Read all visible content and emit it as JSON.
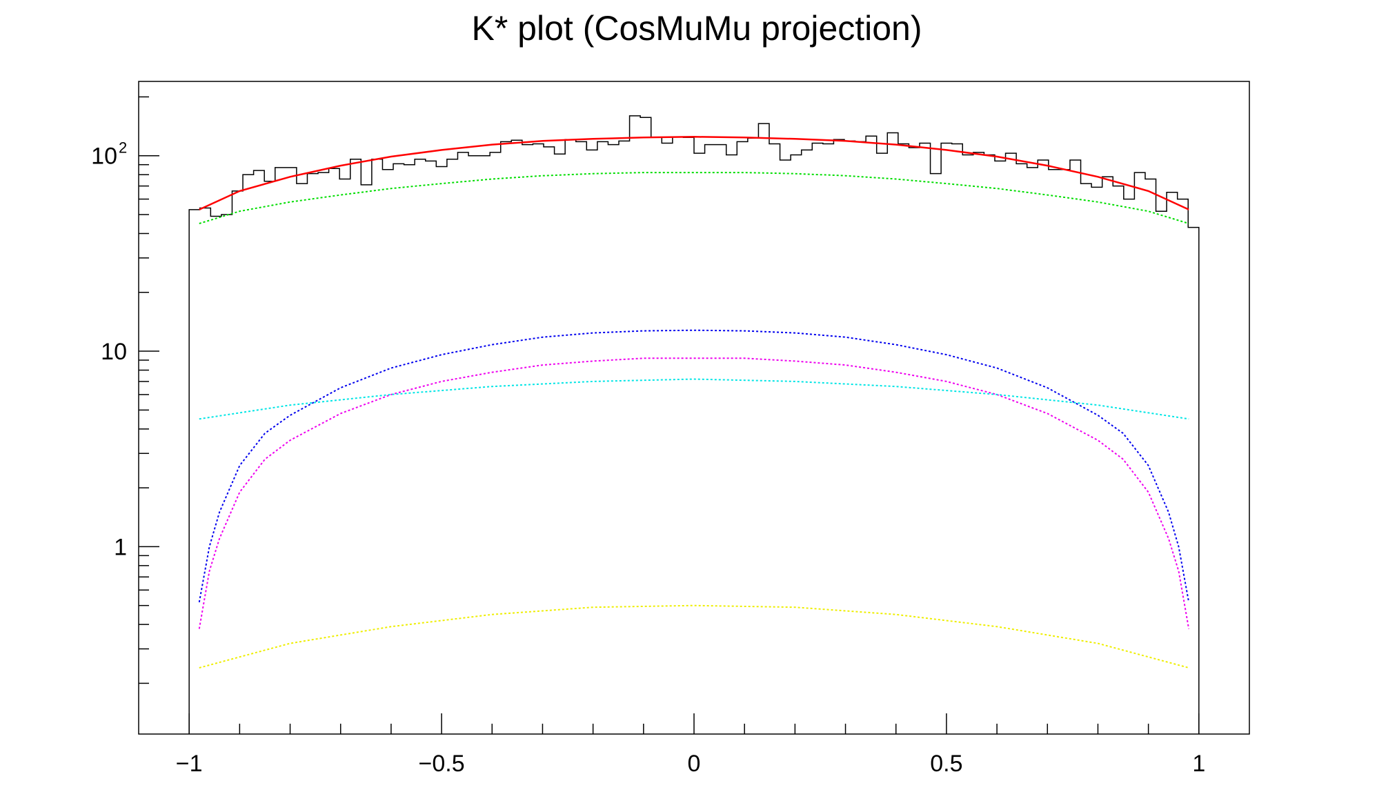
{
  "chart_data": {
    "type": "line",
    "title": "K* plot (CosMuMu projection)",
    "xlabel": "",
    "ylabel": "",
    "xlim": [
      -1.1,
      1.1
    ],
    "ylim": [
      0.11,
      240
    ],
    "y_scale": "log",
    "grid": false,
    "legend": "none",
    "x_ticks": [
      {
        "value": -1,
        "label": "−1"
      },
      {
        "value": -0.5,
        "label": "−0.5"
      },
      {
        "value": 0,
        "label": "0"
      },
      {
        "value": 0.5,
        "label": "0.5"
      },
      {
        "value": 1,
        "label": "1"
      }
    ],
    "y_ticks": [
      {
        "value": 1,
        "label": "1"
      },
      {
        "value": 10,
        "label": "10"
      },
      {
        "value": 100,
        "label": "10",
        "exponent": "2"
      }
    ],
    "histogram": {
      "color": "#000000",
      "bin_edges_min": -1.0,
      "bin_edges_max": 1.0,
      "values": [
        53,
        54,
        49,
        50,
        66,
        80,
        84,
        74,
        87,
        87,
        72,
        81,
        82,
        86,
        76,
        96,
        71,
        96,
        85,
        91,
        90,
        96,
        94,
        88,
        96,
        104,
        100,
        100,
        104,
        118,
        120,
        114,
        115,
        111,
        102,
        121,
        118,
        107,
        118,
        114,
        119,
        160,
        157,
        124,
        116,
        125,
        124,
        103,
        114,
        114,
        101,
        118,
        123,
        146,
        115,
        95,
        101,
        107,
        116,
        115,
        121,
        119,
        118,
        126,
        103,
        131,
        115,
        110,
        116,
        81,
        116,
        115,
        101,
        104,
        101,
        94,
        103,
        91,
        87,
        95,
        85,
        85,
        95,
        72,
        69,
        78,
        70,
        60,
        82,
        76,
        52,
        65,
        60,
        43
      ]
    },
    "series": [
      {
        "name": "",
        "color": "#ff0000",
        "style": "solid",
        "x": [
          -0.98,
          -0.9,
          -0.8,
          -0.7,
          -0.6,
          -0.5,
          -0.4,
          -0.3,
          -0.2,
          -0.1,
          0,
          0.1,
          0.2,
          0.3,
          0.4,
          0.5,
          0.6,
          0.7,
          0.8,
          0.9,
          0.98
        ],
        "y": [
          53,
          66,
          78,
          89,
          99,
          107,
          114,
          119,
          122,
          124,
          125,
          124,
          122,
          119,
          114,
          107,
          99,
          89,
          78,
          66,
          53
        ]
      },
      {
        "name": "",
        "color": "#00dd00",
        "style": "dotted",
        "x": [
          -0.98,
          -0.9,
          -0.8,
          -0.7,
          -0.6,
          -0.5,
          -0.4,
          -0.3,
          -0.2,
          -0.1,
          0,
          0.1,
          0.2,
          0.3,
          0.4,
          0.5,
          0.6,
          0.7,
          0.8,
          0.9,
          0.98
        ],
        "y": [
          45,
          52,
          58,
          63,
          68,
          72,
          76,
          79,
          81,
          82,
          82,
          82,
          81,
          79,
          76,
          72,
          68,
          63,
          58,
          52,
          45
        ]
      },
      {
        "name": "",
        "color": "#0000ee",
        "style": "dotted",
        "x": [
          -0.98,
          -0.96,
          -0.94,
          -0.9,
          -0.85,
          -0.8,
          -0.7,
          -0.6,
          -0.5,
          -0.4,
          -0.3,
          -0.2,
          -0.1,
          0,
          0.1,
          0.2,
          0.3,
          0.4,
          0.5,
          0.6,
          0.7,
          0.8,
          0.85,
          0.9,
          0.94,
          0.96,
          0.98
        ],
        "y": [
          0.52,
          1.0,
          1.5,
          2.6,
          3.8,
          4.7,
          6.5,
          8.2,
          9.6,
          10.8,
          11.8,
          12.4,
          12.7,
          12.8,
          12.7,
          12.4,
          11.8,
          10.8,
          9.6,
          8.2,
          6.5,
          4.7,
          3.8,
          2.6,
          1.5,
          1.0,
          0.52
        ]
      },
      {
        "name": "",
        "color": "#ee00ee",
        "style": "dotted",
        "x": [
          -0.98,
          -0.96,
          -0.94,
          -0.9,
          -0.85,
          -0.8,
          -0.7,
          -0.6,
          -0.5,
          -0.4,
          -0.3,
          -0.2,
          -0.1,
          0,
          0.1,
          0.2,
          0.3,
          0.4,
          0.5,
          0.6,
          0.7,
          0.8,
          0.85,
          0.9,
          0.94,
          0.96,
          0.98
        ],
        "y": [
          0.38,
          0.75,
          1.1,
          1.9,
          2.8,
          3.5,
          4.8,
          6.0,
          7.0,
          7.8,
          8.5,
          8.9,
          9.2,
          9.2,
          9.2,
          8.9,
          8.5,
          7.8,
          7.0,
          6.0,
          4.8,
          3.5,
          2.8,
          1.9,
          1.1,
          0.75,
          0.38
        ]
      },
      {
        "name": "",
        "color": "#00e5e5",
        "style": "dotted",
        "x": [
          -0.98,
          -0.8,
          -0.6,
          -0.4,
          -0.2,
          0,
          0.2,
          0.4,
          0.6,
          0.8,
          0.98
        ],
        "y": [
          4.5,
          5.3,
          6.0,
          6.6,
          7.0,
          7.2,
          7.0,
          6.6,
          6.0,
          5.3,
          4.5
        ]
      },
      {
        "name": "",
        "color": "#eeee00",
        "style": "dotted",
        "x": [
          -0.98,
          -0.8,
          -0.6,
          -0.4,
          -0.2,
          0,
          0.2,
          0.4,
          0.6,
          0.8,
          0.98
        ],
        "y": [
          0.24,
          0.32,
          0.39,
          0.45,
          0.49,
          0.5,
          0.49,
          0.45,
          0.39,
          0.32,
          0.24
        ]
      }
    ]
  }
}
